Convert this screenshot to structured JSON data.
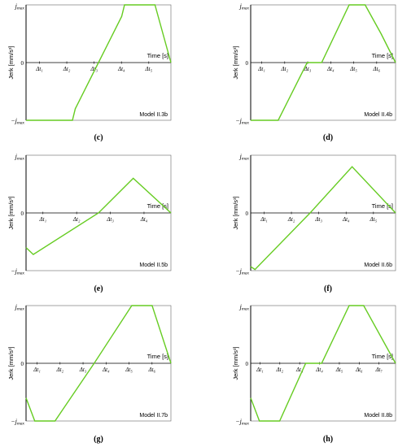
{
  "panels": [
    {
      "caption": "(c)",
      "model": "Model II.3b",
      "ylabel": "Jerk [mm/s³]",
      "xlabel": "Time [s]",
      "ytick_top": "j_max",
      "ytick_zero": "0",
      "ytick_bottom": "-j_max",
      "xticks": [
        "Δt₁",
        "Δt₂",
        "Δt₃",
        "Δt₄",
        "Δt₅"
      ],
      "chart_data": {
        "type": "line",
        "ylim": [
          -1,
          1
        ],
        "xlim": [
          0,
          10
        ],
        "series": [
          {
            "x": [
              0,
              1.6,
              3.2,
              3.4,
              5.0,
              6.6,
              6.8,
              7.9,
              8.9,
              10.0
            ],
            "y": [
              -1,
              -1,
              -1,
              -0.8,
              0,
              0.8,
              1,
              1,
              1,
              0
            ]
          }
        ]
      }
    },
    {
      "caption": "(d)",
      "model": "Model II.4b",
      "ylabel": "Jerk [mm/s³]",
      "xlabel": "Time [s]",
      "ytick_top": "j_max",
      "ytick_zero": "0",
      "ytick_bottom": "-j_max",
      "xticks": [
        "Δt₁",
        "Δt₂",
        "Δt₃",
        "Δt₄",
        "Δt₅",
        "Δt₆"
      ],
      "chart_data": {
        "type": "line",
        "ylim": [
          -1,
          1
        ],
        "xlim": [
          0,
          10
        ],
        "series": [
          {
            "x": [
              0,
              1.9,
              3.9,
              4.9,
              6.8,
              7.9,
              9.0,
              10.0
            ],
            "y": [
              -1,
              -1,
              0,
              0,
              1,
              1,
              0.5,
              0
            ]
          }
        ]
      }
    },
    {
      "caption": "(e)",
      "model": "Model II.5b",
      "ylabel": "Jerk [mm/s³]",
      "xlabel": "Time [s]",
      "ytick_top": "j_max",
      "ytick_zero": "0",
      "ytick_bottom": "-j_max",
      "xticks": [
        "Δt₁",
        "Δt₂",
        "Δt₃",
        "Δt₄"
      ],
      "chart_data": {
        "type": "line",
        "ylim": [
          -1,
          1
        ],
        "xlim": [
          0,
          10
        ],
        "series": [
          {
            "x": [
              0,
              0.5,
              5.0,
              7.4,
              10.0
            ],
            "y": [
              -0.6,
              -0.72,
              0,
              0.6,
              0
            ]
          }
        ]
      }
    },
    {
      "caption": "(f)",
      "model": "Model II.6b",
      "ylabel": "Jerk [mm/s³]",
      "xlabel": "Time [s]",
      "ytick_top": "j_max",
      "ytick_zero": "0",
      "ytick_bottom": "-j_max",
      "xticks": [
        "Δt₁",
        "Δt₂",
        "Δt₃",
        "Δt₄",
        "Δt₅"
      ],
      "chart_data": {
        "type": "line",
        "ylim": [
          -1,
          1
        ],
        "xlim": [
          0,
          10
        ],
        "series": [
          {
            "x": [
              0,
              0.3,
              4.1,
              7.0,
              10.0
            ],
            "y": [
              -0.93,
              -0.98,
              0,
              0.8,
              0
            ]
          }
        ]
      }
    },
    {
      "caption": "(g)",
      "model": "Model II.7b",
      "ylabel": "Jerk [mm/s³]",
      "xlabel": "Time [s]",
      "ytick_top": "j_max",
      "ytick_zero": "0",
      "ytick_bottom": "-j_max",
      "xticks": [
        "Δt₁",
        "Δt₂",
        "Δt₃",
        "Δt₄",
        "Δt₅",
        "Δt₆"
      ],
      "chart_data": {
        "type": "line",
        "ylim": [
          -1,
          1
        ],
        "xlim": [
          0,
          10
        ],
        "series": [
          {
            "x": [
              0,
              0.6,
              2.0,
              4.7,
              7.3,
              8.7,
              10.0
            ],
            "y": [
              -0.6,
              -1,
              -1,
              0,
              1,
              1,
              0
            ]
          }
        ]
      }
    },
    {
      "caption": "(h)",
      "model": "Model II.8b",
      "ylabel": "Jerk [mm/s³]",
      "xlabel": "Time [s]",
      "ytick_top": "j_max",
      "ytick_zero": "0",
      "ytick_bottom": "-j_max",
      "xticks": [
        "Δt₁",
        "Δt₂",
        "Δt₃",
        "Δt₄",
        "Δt₅",
        "Δt₆",
        "Δt₇"
      ],
      "chart_data": {
        "type": "line",
        "ylim": [
          -1,
          1
        ],
        "xlim": [
          0,
          10
        ],
        "series": [
          {
            "x": [
              0,
              0.6,
              2.0,
              3.8,
              4.9,
              6.8,
              7.8,
              10.0
            ],
            "y": [
              -0.6,
              -1,
              -1,
              0,
              0,
              1,
              1,
              0
            ]
          }
        ]
      }
    }
  ],
  "style": {
    "line_color": "#66cc22",
    "axis_color": "#000000",
    "box_color": "#666666"
  }
}
